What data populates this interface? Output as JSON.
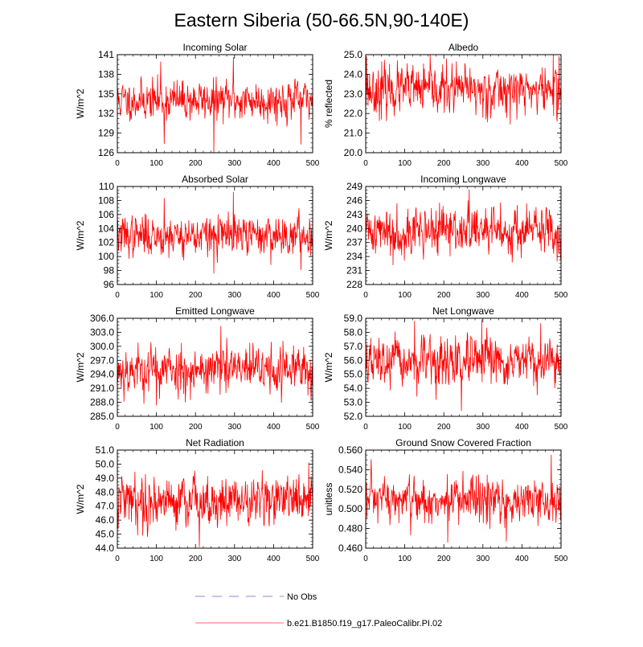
{
  "title": "Eastern Siberia (50-66.5N,90-140E)",
  "colors": {
    "model_line": "#ff0000",
    "obs_line": "#b0b0e8",
    "axis": "#000000"
  },
  "legend": {
    "items": [
      {
        "label": "No Obs",
        "style": "dashed",
        "color": "#b0b0e8"
      },
      {
        "label": "b.e21.B1850.f19_g17.PaleoCalibr.PI.02",
        "style": "solid",
        "color": "#ff9a9a"
      }
    ]
  },
  "chart_data": [
    {
      "type": "line",
      "title": "Incoming Solar",
      "ylabel": "W/m^2",
      "xlim": [
        0,
        500
      ],
      "xticks": [
        0,
        100,
        200,
        300,
        400,
        500
      ],
      "ylim": [
        126,
        141
      ],
      "yticks": [
        "126",
        "129",
        "132",
        "135",
        "138",
        "141"
      ],
      "series": [
        {
          "name": "b.e21.B1850.f19_g17.PaleoCalibr.PI.02",
          "mean": 134.0,
          "sd": 1.5,
          "seed": 11,
          "spikes": [
            [
              111,
              139.9
            ],
            [
              120,
              127.4
            ],
            [
              247,
              126.0
            ],
            [
              297,
              140.6
            ],
            [
              470,
              127.3
            ]
          ]
        }
      ]
    },
    {
      "type": "line",
      "title": "Albedo",
      "ylabel": "% reflected",
      "xlim": [
        0,
        500
      ],
      "xticks": [
        0,
        100,
        200,
        300,
        400,
        500
      ],
      "ylim": [
        20.0,
        25.0
      ],
      "yticks": [
        "20.0",
        "21.0",
        "22.0",
        "23.0",
        "24.0",
        "25.0"
      ],
      "series": [
        {
          "name": "b.e21.B1850.f19_g17.PaleoCalibr.PI.02",
          "mean": 23.2,
          "sd": 0.6,
          "seed": 23,
          "spikes": [
            [
              2,
              24.9
            ],
            [
              40,
              21.7
            ],
            [
              300,
              21.8
            ],
            [
              480,
              24.9
            ],
            [
              490,
              21.6
            ],
            [
              495,
              24.9
            ]
          ]
        }
      ]
    },
    {
      "type": "line",
      "title": "Absorbed Solar",
      "ylabel": "W/m^2",
      "xlim": [
        0,
        500
      ],
      "xticks": [
        0,
        100,
        200,
        300,
        400,
        500
      ],
      "ylim": [
        96,
        110
      ],
      "yticks": [
        "96",
        "98",
        "100",
        "102",
        "104",
        "106",
        "108",
        "110"
      ],
      "series": [
        {
          "name": "b.e21.B1850.f19_g17.PaleoCalibr.PI.02",
          "mean": 103.0,
          "sd": 1.4,
          "seed": 37,
          "spikes": [
            [
              120,
              108.3
            ],
            [
              247,
              97.6
            ],
            [
              297,
              109.2
            ],
            [
              470,
              98.1
            ]
          ]
        }
      ]
    },
    {
      "type": "line",
      "title": "Incoming Longwave",
      "ylabel": "W/m^2",
      "xlim": [
        0,
        500
      ],
      "xticks": [
        0,
        100,
        200,
        300,
        400,
        500
      ],
      "ylim": [
        228,
        249
      ],
      "yticks": [
        "228",
        "231",
        "234",
        "237",
        "240",
        "243",
        "246",
        "249"
      ],
      "series": [
        {
          "name": "b.e21.B1850.f19_g17.PaleoCalibr.PI.02",
          "mean": 239.5,
          "sd": 2.5,
          "seed": 41,
          "spikes": [
            [
              265,
              248.3
            ],
            [
              70,
              232.2
            ],
            [
              490,
              233.0
            ]
          ]
        }
      ]
    },
    {
      "type": "line",
      "title": "Emitted Longwave",
      "ylabel": "W/m^2",
      "xlim": [
        0,
        500
      ],
      "xticks": [
        0,
        100,
        200,
        300,
        400,
        500
      ],
      "ylim": [
        285.0,
        306.0
      ],
      "yticks": [
        "285.0",
        "288.0",
        "291.0",
        "294.0",
        "297.0",
        "300.0",
        "303.0",
        "306.0"
      ],
      "series": [
        {
          "name": "b.e21.B1850.f19_g17.PaleoCalibr.PI.02",
          "mean": 295.0,
          "sd": 2.6,
          "seed": 53,
          "spikes": [
            [
              265,
              304.3
            ],
            [
              100,
              287.4
            ],
            [
              420,
              288.0
            ]
          ]
        }
      ]
    },
    {
      "type": "line",
      "title": "Net Longwave",
      "ylabel": "W/m^2",
      "xlim": [
        0,
        500
      ],
      "xticks": [
        0,
        100,
        200,
        300,
        400,
        500
      ],
      "ylim": [
        52.0,
        59.0
      ],
      "yticks": [
        "52.0",
        "53.0",
        "54.0",
        "55.0",
        "56.0",
        "57.0",
        "58.0",
        "59.0"
      ],
      "series": [
        {
          "name": "b.e21.B1850.f19_g17.PaleoCalibr.PI.02",
          "mean": 55.8,
          "sd": 0.85,
          "seed": 67,
          "spikes": [
            [
              125,
              58.8
            ],
            [
              297,
              58.9
            ],
            [
              180,
              53.2
            ],
            [
              245,
              52.4
            ]
          ]
        }
      ]
    },
    {
      "type": "line",
      "title": "Net Radiation",
      "ylabel": "W/m^2",
      "xlim": [
        0,
        500
      ],
      "xticks": [
        0,
        100,
        200,
        300,
        400,
        500
      ],
      "ylim": [
        44.0,
        51.0
      ],
      "yticks": [
        "44.0",
        "45.0",
        "46.0",
        "47.0",
        "48.0",
        "49.0",
        "50.0",
        "51.0"
      ],
      "series": [
        {
          "name": "b.e21.B1850.f19_g17.PaleoCalibr.PI.02",
          "mean": 47.4,
          "sd": 0.9,
          "seed": 79,
          "spikes": [
            [
              210,
              44.1
            ],
            [
              490,
              50.1
            ],
            [
              2,
              45.4
            ]
          ]
        }
      ]
    },
    {
      "type": "line",
      "title": "Ground Snow Covered Fraction",
      "ylabel": "unitless",
      "xlim": [
        0,
        500
      ],
      "xticks": [
        0,
        100,
        200,
        300,
        400,
        500
      ],
      "ylim": [
        0.46,
        0.56
      ],
      "yticks": [
        "0.460",
        "0.480",
        "0.500",
        "0.520",
        "0.540",
        "0.560"
      ],
      "series": [
        {
          "name": "b.e21.B1850.f19_g17.PaleoCalibr.PI.02",
          "mean": 0.508,
          "sd": 0.012,
          "seed": 97,
          "spikes": [
            [
              475,
              0.555
            ],
            [
              210,
              0.466
            ],
            [
              360,
              0.467
            ]
          ]
        }
      ]
    }
  ]
}
